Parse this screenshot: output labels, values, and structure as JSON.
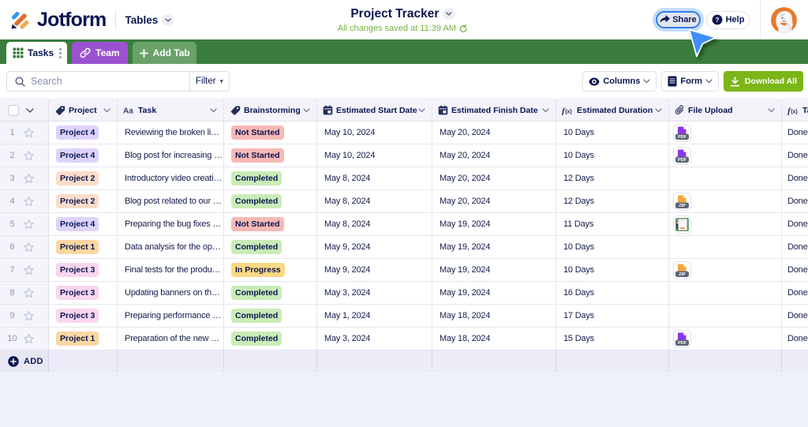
{
  "topbar": {
    "brand": "Jotform",
    "nav_label": "Tables",
    "title": "Project Tracker",
    "autosave_status": "All changes saved at 11:39 AM",
    "share_label": "Share",
    "help_label": "Help"
  },
  "tabs": [
    {
      "id": "tasks",
      "label": "Tasks",
      "icon": "grid-icon",
      "active": true
    },
    {
      "id": "team",
      "label": "Team",
      "icon": "link-icon",
      "active": false
    },
    {
      "id": "add-tab",
      "label": "Add Tab",
      "icon": "plus-icon",
      "active": false
    }
  ],
  "toolbar": {
    "search_placeholder": "Search",
    "search_value": "",
    "filter_label": "Filter",
    "columns_label": "Columns",
    "form_label": "Form",
    "download_label": "Download All"
  },
  "table": {
    "columns": [
      {
        "key": "project",
        "label": "Project",
        "icon": "tag-icon"
      },
      {
        "key": "task",
        "label": "Task",
        "icon": "text-icon"
      },
      {
        "key": "brainstorming",
        "label": "Brainstorming",
        "icon": "tag-icon"
      },
      {
        "key": "start",
        "label": "Estimated Start Date",
        "icon": "calendar-icon"
      },
      {
        "key": "finish",
        "label": "Estimated Finish Date",
        "icon": "calendar-icon"
      },
      {
        "key": "duration",
        "label": "Estimated Duration",
        "icon": "formula-icon"
      },
      {
        "key": "file",
        "label": "File Upload",
        "icon": "paperclip-icon"
      },
      {
        "key": "status",
        "label": "Ta",
        "icon": "formula-icon"
      }
    ],
    "add_label": "ADD",
    "rows": [
      {
        "num": "1",
        "project": "Project 4",
        "project_color": "purple",
        "task": "Reviewing the broken lin…",
        "brainstorming": "Not Started",
        "brainstorming_color": "red",
        "start": "May 10, 2024",
        "finish": "May 20, 2024",
        "duration": "10 Days",
        "file": "pdf",
        "status": "Done"
      },
      {
        "num": "2",
        "project": "Project 4",
        "project_color": "purple",
        "task": "Blog post for increasing …",
        "brainstorming": "Not Started",
        "brainstorming_color": "red",
        "start": "May 10, 2024",
        "finish": "May 20, 2024",
        "duration": "10 Days",
        "file": "pdf",
        "status": "Done"
      },
      {
        "num": "3",
        "project": "Project 2",
        "project_color": "peach",
        "task": "Introductory video creati…",
        "brainstorming": "Completed",
        "brainstorming_color": "green",
        "start": "May 8, 2024",
        "finish": "May 20, 2024",
        "duration": "12 Days",
        "file": "none",
        "status": "Done"
      },
      {
        "num": "4",
        "project": "Project 2",
        "project_color": "peach",
        "task": "Blog post related to our …",
        "brainstorming": "Completed",
        "brainstorming_color": "green",
        "start": "May 8, 2024",
        "finish": "May 20, 2024",
        "duration": "12 Days",
        "file": "zip",
        "status": "Done"
      },
      {
        "num": "5",
        "project": "Project 4",
        "project_color": "purple",
        "task": "Preparing the bug fixes r…",
        "brainstorming": "Not Started",
        "brainstorming_color": "red",
        "start": "May 8, 2024",
        "finish": "May 19, 2024",
        "duration": "11 Days",
        "file": "image",
        "status": "Done"
      },
      {
        "num": "6",
        "project": "Project 1",
        "project_color": "orange",
        "task": "Data analysis for the ope…",
        "brainstorming": "Completed",
        "brainstorming_color": "green",
        "start": "May 9, 2024",
        "finish": "May 19, 2024",
        "duration": "10 Days",
        "file": "none",
        "status": "Done"
      },
      {
        "num": "7",
        "project": "Project 3",
        "project_color": "pink",
        "task": "Final tests for the produ…",
        "brainstorming": "In Progress",
        "brainstorming_color": "yellow",
        "start": "May 9, 2024",
        "finish": "May 19, 2024",
        "duration": "10 Days",
        "file": "zip",
        "status": "Done"
      },
      {
        "num": "8",
        "project": "Project 3",
        "project_color": "pink",
        "task": "Updating banners on the…",
        "brainstorming": "Completed",
        "brainstorming_color": "green",
        "start": "May 3, 2024",
        "finish": "May 19, 2024",
        "duration": "16 Days",
        "file": "none",
        "status": "Done"
      },
      {
        "num": "9",
        "project": "Project 3",
        "project_color": "pink",
        "task": "Preparing performance …",
        "brainstorming": "Completed",
        "brainstorming_color": "green",
        "start": "May 1, 2024",
        "finish": "May 18, 2024",
        "duration": "17 Days",
        "file": "none",
        "status": "Done"
      },
      {
        "num": "10",
        "project": "Project 1",
        "project_color": "orange",
        "task": "Preparation of the new s…",
        "brainstorming": "Completed",
        "brainstorming_color": "green",
        "start": "May 3, 2024",
        "finish": "May 18, 2024",
        "duration": "15 Days",
        "file": "pdf",
        "status": "Done"
      }
    ]
  },
  "colors": {
    "navy": "#0a1551",
    "green_bar": "#3b7d3e",
    "tab_purple": "#9b52d1",
    "tab_add_green": "#69a269",
    "saved_green": "#76b33c",
    "download_lime": "#7cb518",
    "share_focus_blue": "#2f80ed",
    "cursor_blue": "#3f8efc",
    "avatar_orange": "#e8792b",
    "badge_purple": "#ded2fc",
    "badge_peach": "#fcdccb",
    "badge_orange": "#fad7a1",
    "badge_pink": "#fad5ee",
    "status_red": "#f6b9b5",
    "status_green": "#c9ecb6",
    "status_yellow": "#fbd885"
  }
}
